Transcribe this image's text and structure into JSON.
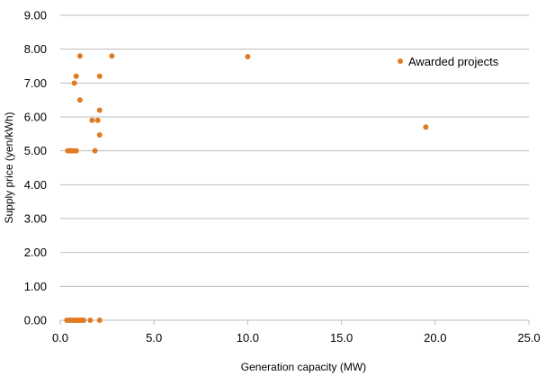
{
  "chart_data": {
    "type": "scatter",
    "xlabel": "Generation capacity (MW)",
    "ylabel": "Supply price (yen/kWh)",
    "xlim": [
      0,
      25
    ],
    "ylim": [
      0,
      9
    ],
    "x_ticks": [
      0,
      5,
      10,
      15,
      20,
      25
    ],
    "x_tick_labels": [
      "0.0",
      "5.0",
      "10.0",
      "15.0",
      "20.0",
      "25.0"
    ],
    "y_ticks": [
      0,
      1,
      2,
      3,
      4,
      5,
      6,
      7,
      8,
      9
    ],
    "y_tick_labels": [
      "0.00",
      "1.00",
      "2.00",
      "3.00",
      "4.00",
      "5.00",
      "6.00",
      "7.00",
      "8.00",
      "9.00"
    ],
    "grid": "horizontal",
    "legend_position": "top-right",
    "series": [
      {
        "name": "Awarded projects",
        "color": "#E07B24",
        "points": [
          {
            "x": 1.05,
            "y": 7.8
          },
          {
            "x": 2.75,
            "y": 7.8
          },
          {
            "x": 10.0,
            "y": 7.78
          },
          {
            "x": 0.85,
            "y": 7.2
          },
          {
            "x": 2.1,
            "y": 7.2
          },
          {
            "x": 0.75,
            "y": 7.0
          },
          {
            "x": 1.05,
            "y": 6.5
          },
          {
            "x": 2.1,
            "y": 6.2
          },
          {
            "x": 1.7,
            "y": 5.9
          },
          {
            "x": 2.0,
            "y": 5.9
          },
          {
            "x": 19.5,
            "y": 5.7
          },
          {
            "x": 2.1,
            "y": 5.47
          },
          {
            "x": 0.4,
            "y": 5.0
          },
          {
            "x": 0.5,
            "y": 5.0
          },
          {
            "x": 0.6,
            "y": 5.0
          },
          {
            "x": 0.7,
            "y": 5.0
          },
          {
            "x": 0.85,
            "y": 5.0
          },
          {
            "x": 1.85,
            "y": 5.0
          },
          {
            "x": 0.35,
            "y": 0.0
          },
          {
            "x": 0.45,
            "y": 0.0
          },
          {
            "x": 0.55,
            "y": 0.0
          },
          {
            "x": 0.65,
            "y": 0.0
          },
          {
            "x": 0.75,
            "y": 0.0
          },
          {
            "x": 0.85,
            "y": 0.0
          },
          {
            "x": 0.95,
            "y": 0.0
          },
          {
            "x": 1.05,
            "y": 0.0
          },
          {
            "x": 1.15,
            "y": 0.0
          },
          {
            "x": 1.25,
            "y": 0.0
          },
          {
            "x": 1.6,
            "y": 0.0
          },
          {
            "x": 2.1,
            "y": 0.0
          }
        ]
      }
    ]
  }
}
